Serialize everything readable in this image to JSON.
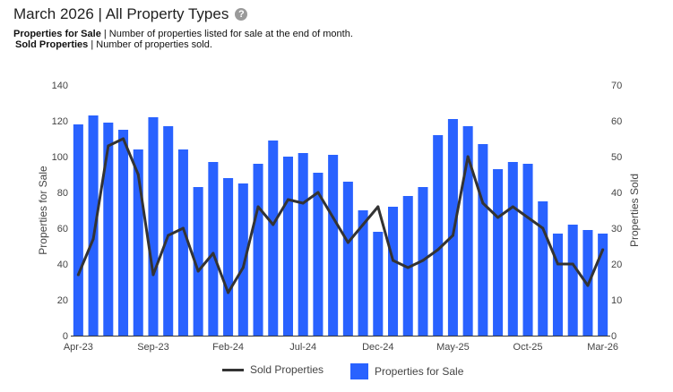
{
  "header": {
    "title": "March 2026 | All Property Types",
    "help_icon": "question-circle-icon",
    "desc1_term": "Properties for Sale",
    "desc1_text": " | Number of properties listed for sale at the end of month.",
    "desc2_term": "Sold Properties",
    "desc2_text": " | Number of properties sold."
  },
  "chart_data": {
    "type": "bar",
    "categories": [
      "Apr-23",
      "May-23",
      "Jun-23",
      "Jul-23",
      "Aug-23",
      "Sep-23",
      "Oct-23",
      "Nov-23",
      "Dec-23",
      "Jan-24",
      "Feb-24",
      "Mar-24",
      "Apr-24",
      "May-24",
      "Jun-24",
      "Jul-24",
      "Aug-24",
      "Sep-24",
      "Oct-24",
      "Nov-24",
      "Dec-24",
      "Jan-25",
      "Feb-25",
      "Mar-25",
      "Apr-25",
      "May-25",
      "Jun-25",
      "Jul-25",
      "Aug-25",
      "Sep-25",
      "Oct-25",
      "Nov-25",
      "Dec-25",
      "Jan-26",
      "Feb-26",
      "Mar-26"
    ],
    "x_tick_labels": [
      "Apr-23",
      "Sep-23",
      "Feb-24",
      "Jul-24",
      "Dec-24",
      "May-25",
      "Oct-25",
      "Mar-26"
    ],
    "series": [
      {
        "name": "Properties for Sale",
        "type": "bar",
        "axis": "left",
        "color": "#2962ff",
        "values": [
          118,
          123,
          119,
          115,
          104,
          122,
          117,
          104,
          83,
          97,
          88,
          85,
          96,
          109,
          100,
          102,
          91,
          101,
          86,
          70,
          58,
          72,
          78,
          83,
          112,
          121,
          117,
          107,
          93,
          97,
          96,
          75,
          57,
          62,
          59,
          57
        ]
      },
      {
        "name": "Sold Properties",
        "type": "line",
        "axis": "right",
        "color": "#333333",
        "values": [
          17,
          27,
          53,
          55,
          45,
          17,
          28,
          30,
          18,
          23,
          12,
          19,
          36,
          31,
          38,
          37,
          40,
          33,
          26,
          31,
          36,
          21,
          19,
          21,
          24,
          28,
          50,
          37,
          33,
          36,
          33,
          30,
          20,
          20,
          14,
          24
        ]
      }
    ],
    "ylabel": "Properties for Sale",
    "ylabel_right": "Properties Sold",
    "ylim": [
      0,
      140
    ],
    "y_ticks": [
      0,
      20,
      40,
      60,
      80,
      100,
      120,
      140
    ],
    "ylim_right": [
      0,
      70
    ],
    "y_ticks_right": [
      0,
      10,
      20,
      30,
      40,
      50,
      60,
      70
    ],
    "legend_position": "bottom",
    "grid": false
  },
  "legend": {
    "line_label": "Sold Properties",
    "bar_label": "Properties for Sale"
  }
}
